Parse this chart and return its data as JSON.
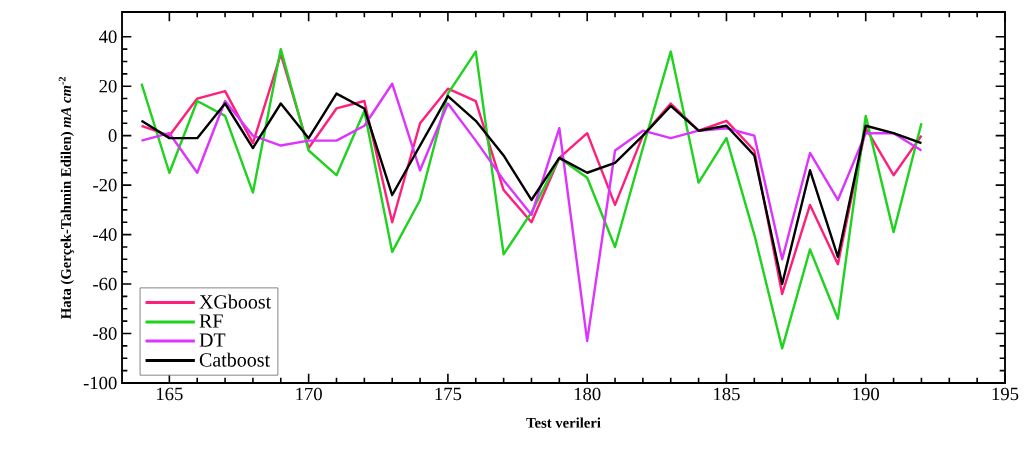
{
  "chart_data": {
    "type": "line",
    "xlabel": "Test verileri",
    "ylabel": "Hata (Gerçek-Tahmin Edilen) *mA cm*$^{-2}$",
    "x": [
      164,
      165,
      166,
      167,
      168,
      169,
      170,
      171,
      172,
      173,
      174,
      175,
      176,
      177,
      178,
      179,
      180,
      181,
      182,
      183,
      184,
      185,
      186,
      187,
      188,
      189,
      190,
      191,
      192
    ],
    "series": [
      {
        "name": "XGboost",
        "color": "#ff1f7a",
        "values": [
          4,
          0,
          15,
          18,
          -3,
          33,
          -5,
          11,
          14,
          -35,
          5,
          19,
          14,
          -22,
          -35,
          -9,
          1,
          -28,
          0,
          13,
          2,
          6,
          -6,
          -64,
          -28,
          -52,
          3,
          -16,
          0
        ]
      },
      {
        "name": "RF",
        "color": "#1ed21e",
        "values": [
          21,
          -15,
          14,
          8,
          -23,
          35,
          -6,
          -16,
          10,
          -47,
          -26,
          17,
          34,
          -48,
          -31,
          -9,
          -17,
          -45,
          -5,
          34,
          -19,
          -1,
          -40,
          -86,
          -46,
          -74,
          8,
          -39,
          5
        ]
      },
      {
        "name": "DT",
        "color": "#dd33ff",
        "values": [
          -2,
          1,
          -15,
          14,
          0,
          -4,
          -2,
          -2,
          4,
          21,
          -14,
          13,
          -2,
          -18,
          -32,
          3,
          -83,
          -6,
          2,
          -1,
          2,
          3,
          0,
          -50,
          -7,
          -26,
          1,
          1,
          -6
        ]
      },
      {
        "name": "Catboost",
        "color": "#000000",
        "values": [
          6,
          -1,
          -1,
          13,
          -5,
          13,
          -1,
          17,
          11,
          -24,
          -4,
          16,
          6,
          -8,
          -26,
          -9,
          -15,
          -11,
          0,
          12,
          2,
          4,
          -8,
          -60,
          -14,
          -49,
          4,
          1,
          -3
        ]
      }
    ],
    "xlim": [
      163.3,
      195
    ],
    "ylim": [
      -100,
      50
    ],
    "xticks": [
      165,
      170,
      175,
      180,
      185,
      190,
      195
    ],
    "yticks": [
      -100,
      -80,
      -60,
      -40,
      -20,
      0,
      20,
      40
    ],
    "legend": "bottom left",
    "grid": false,
    "marker": "none",
    "line_style": "solid"
  }
}
